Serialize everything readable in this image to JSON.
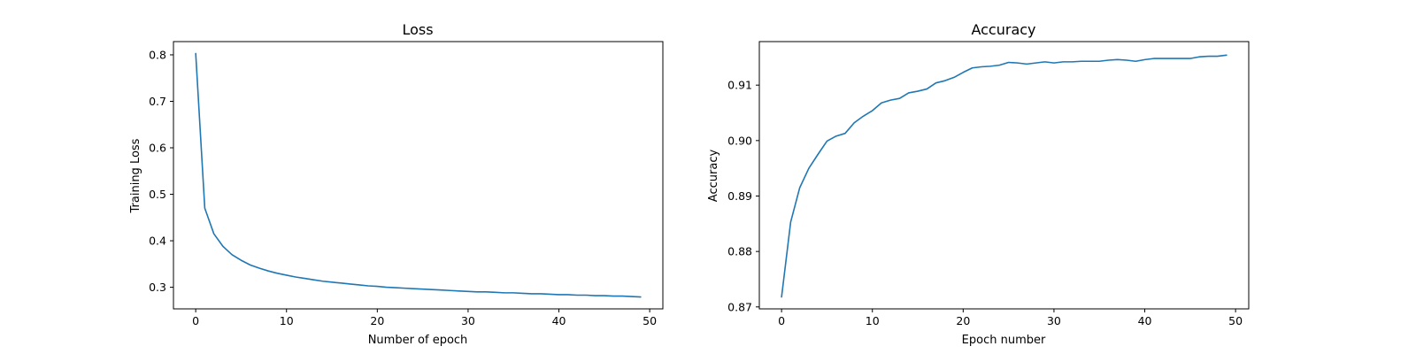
{
  "colors": {
    "series": "#1f77b4"
  },
  "chart_data": [
    {
      "type": "line",
      "title": "Loss",
      "xlabel": "Number of epoch",
      "ylabel": "Training Loss",
      "xlim": [
        -2.45,
        51.45
      ],
      "ylim": [
        0.2535,
        0.8285
      ],
      "xticks": [
        0,
        10,
        20,
        30,
        40,
        50
      ],
      "yticks": [
        0.3,
        0.4,
        0.5,
        0.6,
        0.7,
        0.8
      ],
      "ytick_decimals": 1,
      "grid": false,
      "series": [
        {
          "x": [
            0,
            1,
            2,
            3,
            4,
            5,
            6,
            7,
            8,
            9,
            10,
            11,
            12,
            13,
            14,
            15,
            16,
            17,
            18,
            19,
            20,
            21,
            22,
            23,
            24,
            25,
            26,
            27,
            28,
            29,
            30,
            31,
            32,
            33,
            34,
            35,
            36,
            37,
            38,
            39,
            40,
            41,
            42,
            43,
            44,
            45,
            46,
            47,
            48,
            49
          ],
          "y": [
            0.803,
            0.47,
            0.415,
            0.388,
            0.37,
            0.358,
            0.348,
            0.341,
            0.335,
            0.33,
            0.326,
            0.322,
            0.319,
            0.316,
            0.313,
            0.311,
            0.309,
            0.307,
            0.305,
            0.303,
            0.302,
            0.3,
            0.299,
            0.298,
            0.297,
            0.296,
            0.295,
            0.294,
            0.293,
            0.292,
            0.291,
            0.29,
            0.29,
            0.289,
            0.288,
            0.288,
            0.287,
            0.286,
            0.286,
            0.285,
            0.284,
            0.284,
            0.283,
            0.283,
            0.282,
            0.282,
            0.281,
            0.281,
            0.28,
            0.279
          ]
        }
      ]
    },
    {
      "type": "line",
      "title": "Accuracy",
      "xlabel": "Epoch number",
      "ylabel": "Accuracy",
      "xlim": [
        -2.45,
        51.45
      ],
      "ylim": [
        0.86965,
        0.91785
      ],
      "xticks": [
        0,
        10,
        20,
        30,
        40,
        50
      ],
      "yticks": [
        0.87,
        0.88,
        0.89,
        0.9,
        0.91
      ],
      "ytick_decimals": 2,
      "grid": false,
      "series": [
        {
          "x": [
            0,
            1,
            2,
            3,
            4,
            5,
            6,
            7,
            8,
            9,
            10,
            11,
            12,
            13,
            14,
            15,
            16,
            17,
            18,
            19,
            20,
            21,
            22,
            23,
            24,
            25,
            26,
            27,
            28,
            29,
            30,
            31,
            32,
            33,
            34,
            35,
            36,
            37,
            38,
            39,
            40,
            41,
            42,
            43,
            44,
            45,
            46,
            47,
            48,
            49
          ],
          "y": [
            0.8718,
            0.8853,
            0.8915,
            0.895,
            0.8975,
            0.8999,
            0.9008,
            0.9013,
            0.9032,
            0.9044,
            0.9054,
            0.9068,
            0.9073,
            0.9076,
            0.9086,
            0.9089,
            0.9093,
            0.9104,
            0.9108,
            0.9114,
            0.9123,
            0.9131,
            0.9133,
            0.9134,
            0.9136,
            0.9141,
            0.914,
            0.9138,
            0.914,
            0.9142,
            0.914,
            0.9142,
            0.9142,
            0.9143,
            0.9143,
            0.9143,
            0.9145,
            0.9146,
            0.9145,
            0.9143,
            0.9146,
            0.9148,
            0.9148,
            0.9148,
            0.9148,
            0.9148,
            0.9151,
            0.9152,
            0.9152,
            0.9154
          ]
        }
      ]
    }
  ]
}
